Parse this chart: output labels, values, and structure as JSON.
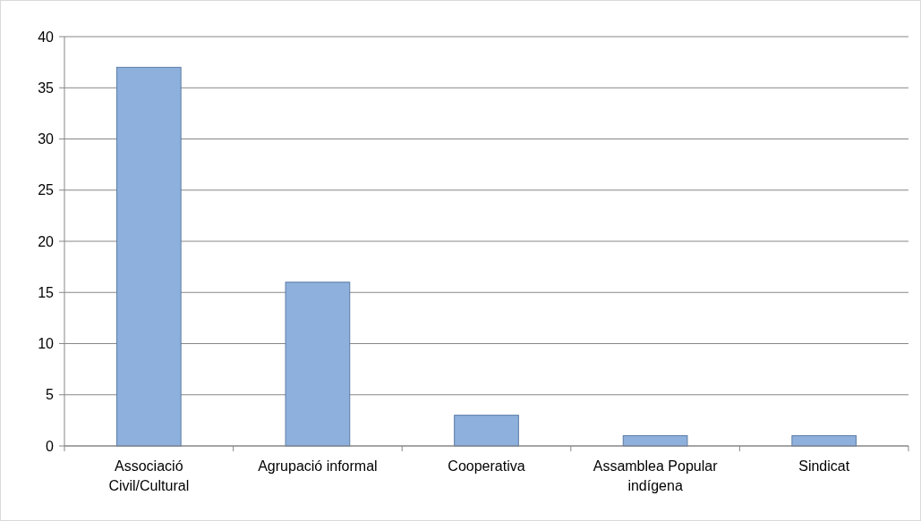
{
  "chart_data": {
    "type": "bar",
    "categories": [
      "Associació Civil/Cultural",
      "Agrupació informal",
      "Cooperativa",
      "Assamblea Popular indígena",
      "Sindicat"
    ],
    "values": [
      37,
      16,
      3,
      1,
      1
    ],
    "color": "#8eb0dc",
    "ylim": [
      0,
      40
    ],
    "yticks": [
      0,
      5,
      10,
      15,
      20,
      25,
      30,
      35,
      40
    ],
    "grid": "y"
  }
}
